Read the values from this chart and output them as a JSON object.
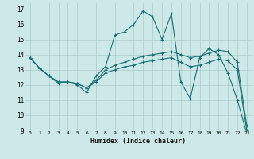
{
  "xlabel": "Humidex (Indice chaleur)",
  "ylabel": "",
  "bg_color": "#cce8e8",
  "grid_color": "#aacccc",
  "line_color": "#1a7070",
  "xlim": [
    -0.5,
    23.5
  ],
  "ylim": [
    9,
    17.4
  ],
  "yticks": [
    9,
    10,
    11,
    12,
    13,
    14,
    15,
    16,
    17
  ],
  "xticks": [
    0,
    1,
    2,
    3,
    4,
    5,
    6,
    7,
    8,
    9,
    10,
    11,
    12,
    13,
    14,
    15,
    16,
    17,
    18,
    19,
    20,
    21,
    22,
    23
  ],
  "series_zigzag": [
    13.8,
    13.1,
    12.6,
    12.1,
    12.2,
    12.0,
    11.5,
    12.6,
    13.2,
    15.3,
    15.5,
    16.0,
    16.9,
    16.5,
    15.0,
    16.7,
    12.2,
    11.1,
    13.8,
    14.4,
    14.0,
    12.8,
    11.0,
    8.8
  ],
  "series_upper": [
    13.8,
    13.1,
    12.6,
    12.2,
    12.2,
    12.1,
    11.8,
    12.3,
    13.0,
    13.3,
    13.5,
    13.7,
    13.9,
    14.0,
    14.1,
    14.2,
    14.0,
    13.8,
    13.9,
    14.1,
    14.3,
    14.2,
    13.5,
    9.3
  ],
  "series_lower": [
    13.8,
    13.1,
    12.6,
    12.2,
    12.2,
    12.1,
    11.8,
    12.2,
    12.8,
    13.0,
    13.2,
    13.3,
    13.5,
    13.6,
    13.7,
    13.8,
    13.5,
    13.2,
    13.3,
    13.5,
    13.7,
    13.6,
    13.0,
    9.0
  ]
}
